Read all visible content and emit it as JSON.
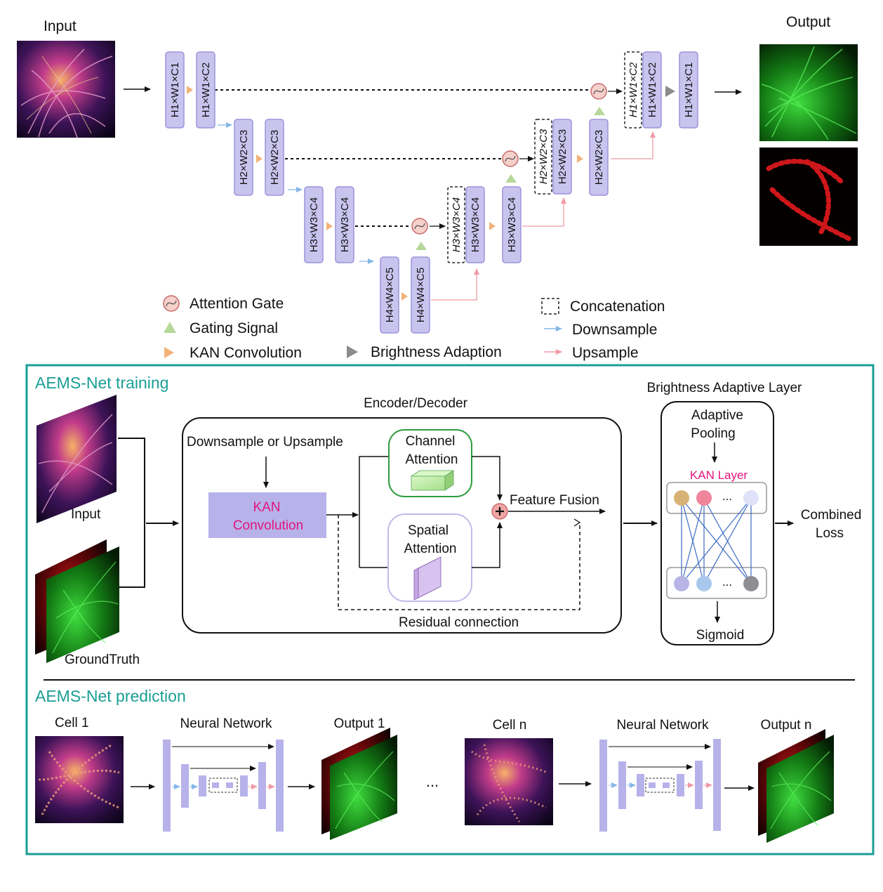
{
  "top": {
    "input_label": "Input",
    "output_label": "Output",
    "blocks": {
      "e1a": "H1×W1×C1",
      "e1b": "H1×W1×C2",
      "e2a": "H2×W2×C3",
      "e2b": "H2×W2×C3",
      "e3a": "H3×W3×C4",
      "e3b": "H3×W3×C4",
      "b4a": "H4×W4×C5",
      "b4b": "H4×W4×C5",
      "d3cat": "H3×W3×C4",
      "d3a": "H3×W3×C4",
      "d3b": "H3×W3×C4",
      "d2cat": "H2×W2×C3",
      "d2a": "H2×W2×C3",
      "d2b": "H2×W2×C3",
      "d1cat": "H1×W1×C2",
      "d1a": "H1×W1×C2",
      "d1b": "H1×W1×C1"
    }
  },
  "legend": {
    "attention_gate": "Attention Gate",
    "gating_signal": "Gating Signal",
    "kan_convolution": "KAN Convolution",
    "brightness_adaption": "Brightness Adaption",
    "concatenation": "Concatenation",
    "downsample": "Downsample",
    "upsample": "Upsample"
  },
  "training": {
    "title": "AEMS-Net training",
    "input_label": "Input",
    "groundtruth_label": "GroundTruth",
    "encoder_title": "Encoder/Decoder",
    "down_or_up": "Downsample or Upsample",
    "kan_conv_line1": "KAN",
    "kan_conv_line2": "Convolution",
    "channel_attention_1": "Channel",
    "channel_attention_2": "Attention",
    "spatial_attention_1": "Spatial",
    "spatial_attention_2": "Attention",
    "feature_fusion": "Feature Fusion",
    "residual": "Residual connection",
    "bal_title": "Brightness Adaptive Layer",
    "adaptive_pooling_1": "Adaptive",
    "adaptive_pooling_2": "Pooling",
    "kan_layer": "KAN Layer",
    "dots": "...",
    "sigmoid": "Sigmoid",
    "combined_loss_1": "Combined",
    "combined_loss_2": "Loss"
  },
  "prediction": {
    "title": "AEMS-Net prediction",
    "cell1": "Cell 1",
    "nn1": "Neural Network",
    "output1": "Output 1",
    "ellipsis": "...",
    "celln": "Cell n",
    "nn2": "Neural Network",
    "outputn": "Output n"
  },
  "colors": {
    "teal_border": "#1a9e94",
    "teal_text": "#1a9e94",
    "block_fill": "#c9c4ee",
    "kan_conv_box": "#b7b2ea",
    "magenta_text": "#e0157d",
    "down_arrow": "#86b7e8",
    "up_arrow": "#ef9aa6",
    "orange_triangle": "#f2b27a",
    "green_triangle": "#b7d89a",
    "gray_triangle": "#8c8c8c"
  }
}
